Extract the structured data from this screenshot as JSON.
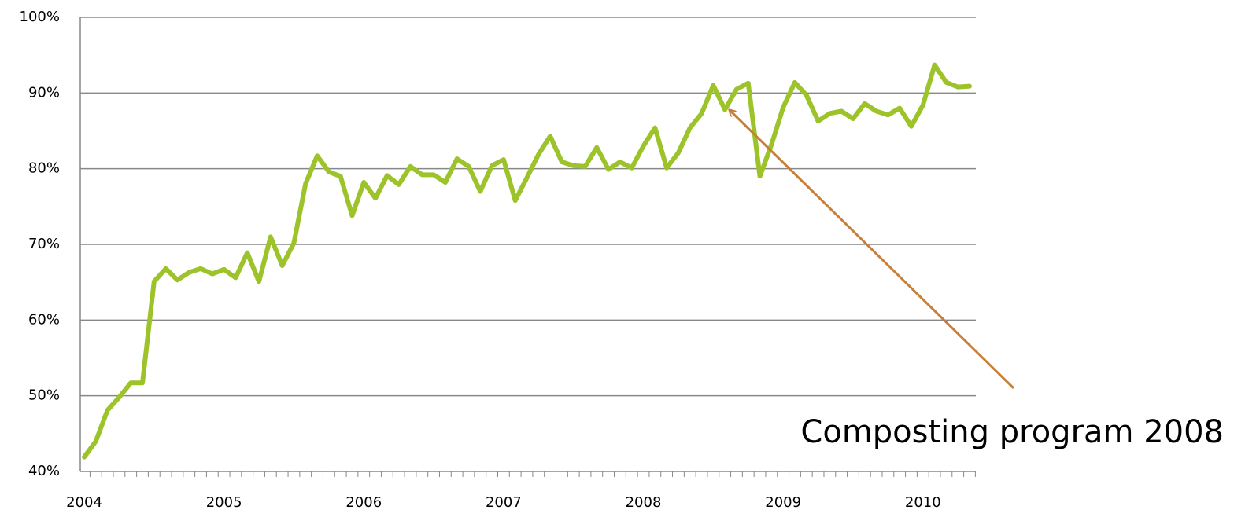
{
  "chart_data": {
    "type": "line",
    "categories": [
      "2004",
      null,
      null,
      null,
      null,
      null,
      null,
      null,
      null,
      null,
      null,
      null,
      "2005",
      null,
      null,
      null,
      null,
      null,
      null,
      null,
      null,
      null,
      null,
      null,
      "2006",
      null,
      null,
      null,
      null,
      null,
      null,
      null,
      null,
      null,
      null,
      null,
      "2007",
      null,
      null,
      null,
      null,
      null,
      null,
      null,
      null,
      null,
      null,
      null,
      "2008",
      null,
      null,
      null,
      null,
      null,
      null,
      null,
      null,
      null,
      null,
      null,
      "2009",
      null,
      null,
      null,
      null,
      null,
      null,
      null,
      null,
      null,
      null,
      null,
      "2010",
      null,
      null,
      null,
      null
    ],
    "values": [
      41.9,
      44,
      48.1,
      49.8,
      51.7,
      51.7,
      65.1,
      66.8,
      65.3,
      66.3,
      66.8,
      66.1,
      66.7,
      65.6,
      68.9,
      65.1,
      71.0,
      67.2,
      70.2,
      78.0,
      81.7,
      79.6,
      79.0,
      73.8,
      78.2,
      76.1,
      79.1,
      77.9,
      80.3,
      79.2,
      79.2,
      78.2,
      81.3,
      80.3,
      77.0,
      80.4,
      81.2,
      75.8,
      78.8,
      81.9,
      84.3,
      80.9,
      80.4,
      80.3,
      82.8,
      79.9,
      80.9,
      80.1,
      83.0,
      85.4,
      80.1,
      82.1,
      85.4,
      87.3,
      91.0,
      87.8,
      90.5,
      91.3,
      79.0,
      83.2,
      88.1,
      91.4,
      89.7,
      86.3,
      87.3,
      87.6,
      86.6,
      88.6,
      87.6,
      87.1,
      88.0,
      85.6,
      88.4,
      93.7,
      91.4,
      90.8,
      90.9
    ],
    "color": "#9dc32a",
    "ylim": [
      40,
      100
    ],
    "yticks": [
      {
        "value": 40,
        "label": "40%"
      },
      {
        "value": 50,
        "label": "50%"
      },
      {
        "value": 60,
        "label": "60%"
      },
      {
        "value": 70,
        "label": "70%"
      },
      {
        "value": 80,
        "label": "80%"
      },
      {
        "value": 90,
        "label": "90%"
      },
      {
        "value": 100,
        "label": "100%"
      }
    ],
    "grid": true,
    "annotation": "Composting program 2008"
  }
}
